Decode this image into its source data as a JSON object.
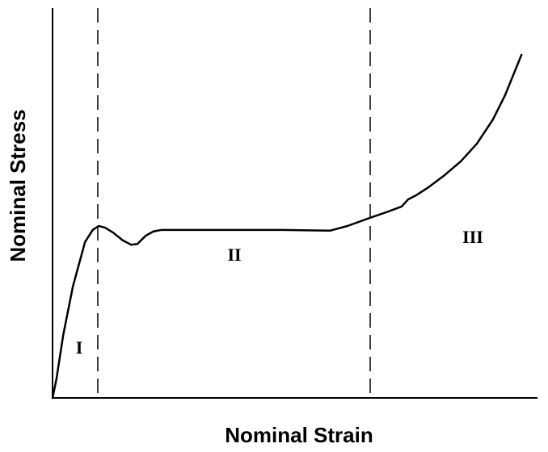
{
  "chart_data": {
    "type": "line",
    "xlabel": "Nominal Strain",
    "ylabel": "Nominal Stress",
    "xlim": [
      0,
      100
    ],
    "ylim": [
      0,
      100
    ],
    "x": [
      0,
      0.8,
      2.2,
      4.2,
      6.7,
      8.3,
      9.5,
      10.8,
      12.5,
      14.5,
      16.2,
      17.5,
      19.2,
      20.8,
      22.5,
      30.8,
      39.2,
      47.5,
      57.2,
      60.8,
      65.5,
      69.2,
      72.0,
      73.3,
      75.0,
      77.5,
      80.8,
      84.2,
      87.5,
      90.8,
      93.3,
      95.0,
      96.7
    ],
    "series": [
      {
        "color": "#000000",
        "values": [
          0,
          4.8,
          16.1,
          28.6,
          40.0,
          43.1,
          44.1,
          43.7,
          42.4,
          40.4,
          39.3,
          39.5,
          41.6,
          42.7,
          43.1,
          43.1,
          43.1,
          43.1,
          42.9,
          44.1,
          46.2,
          47.8,
          49.1,
          50.9,
          52.0,
          54.0,
          57.1,
          60.7,
          65.2,
          71.4,
          77.6,
          82.8,
          88.0
        ]
      }
    ],
    "boundaries": [
      9.33,
      65.5
    ],
    "annotations": [
      "I",
      "II",
      "III"
    ]
  }
}
